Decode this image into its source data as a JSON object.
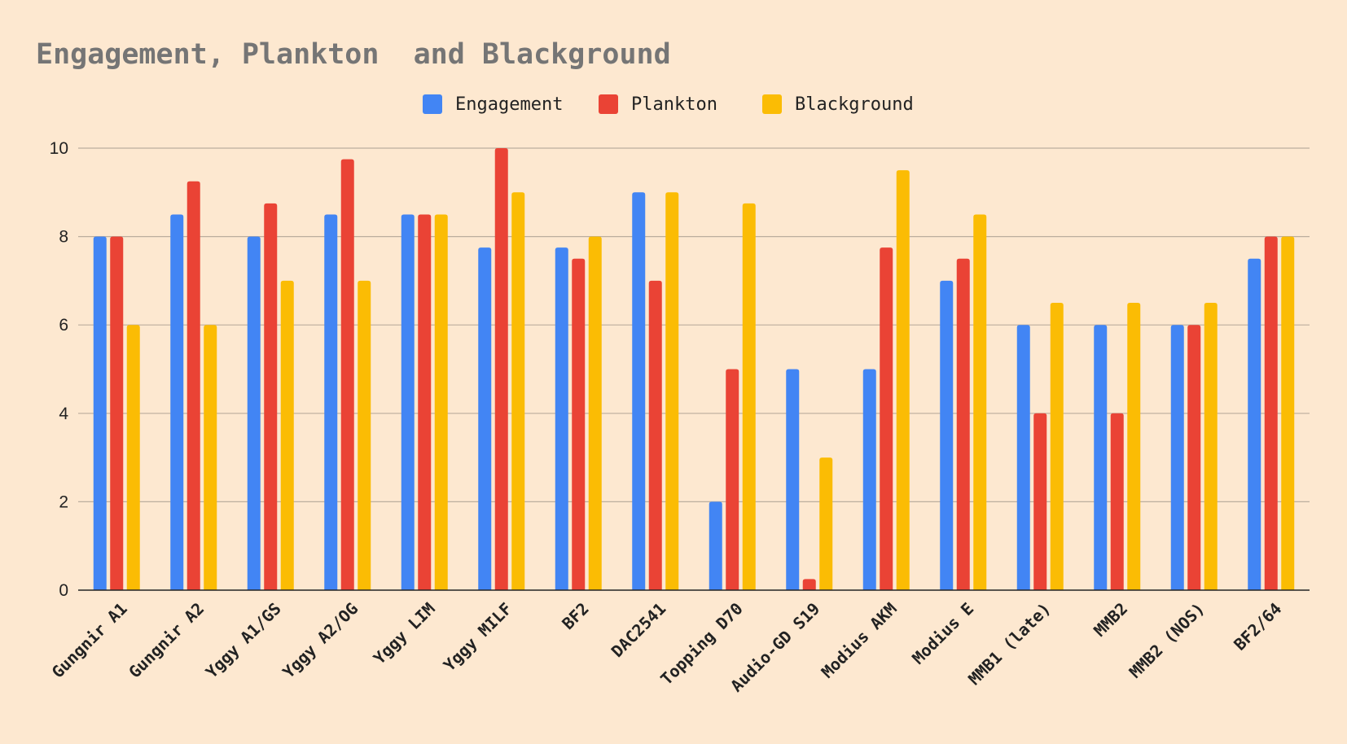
{
  "chart_data": {
    "type": "bar",
    "title": "Engagement, Plankton  and Blackground",
    "xlabel": "",
    "ylabel": "",
    "ylim": [
      0,
      10
    ],
    "yticks": [
      0,
      2,
      4,
      6,
      8,
      10
    ],
    "grid": true,
    "legend_position": "top-center",
    "categories": [
      "Gungnir A1",
      "Gungnir A2",
      "Yggy A1/GS",
      "Yggy A2/OG",
      "Yggy LIM",
      "Yggy MILF",
      "BF2",
      "DAC2541",
      "Topping D70",
      "Audio-GD S19",
      "Modius AKM",
      "Modius E",
      "MMB1 (late)",
      "MMB2",
      "MMB2 (NOS)",
      "BF2/64"
    ],
    "series": [
      {
        "name": "Engagement",
        "color": "#4285f4",
        "values": [
          8,
          8.5,
          8,
          8.5,
          8.5,
          7.75,
          7.75,
          9,
          2,
          5,
          5,
          7,
          6,
          6,
          6,
          7.5
        ]
      },
      {
        "name": "Plankton",
        "color": "#ea4335",
        "values": [
          8,
          9.25,
          8.75,
          9.75,
          8.5,
          10,
          7.5,
          7,
          5,
          0.25,
          7.75,
          7.5,
          4,
          4,
          6,
          8
        ]
      },
      {
        "name": "Blackground",
        "color": "#fbbc04",
        "values": [
          6,
          6,
          7,
          7,
          8.5,
          9,
          8,
          9,
          8.75,
          3,
          9.5,
          8.5,
          6.5,
          6.5,
          6.5,
          8
        ]
      }
    ]
  }
}
